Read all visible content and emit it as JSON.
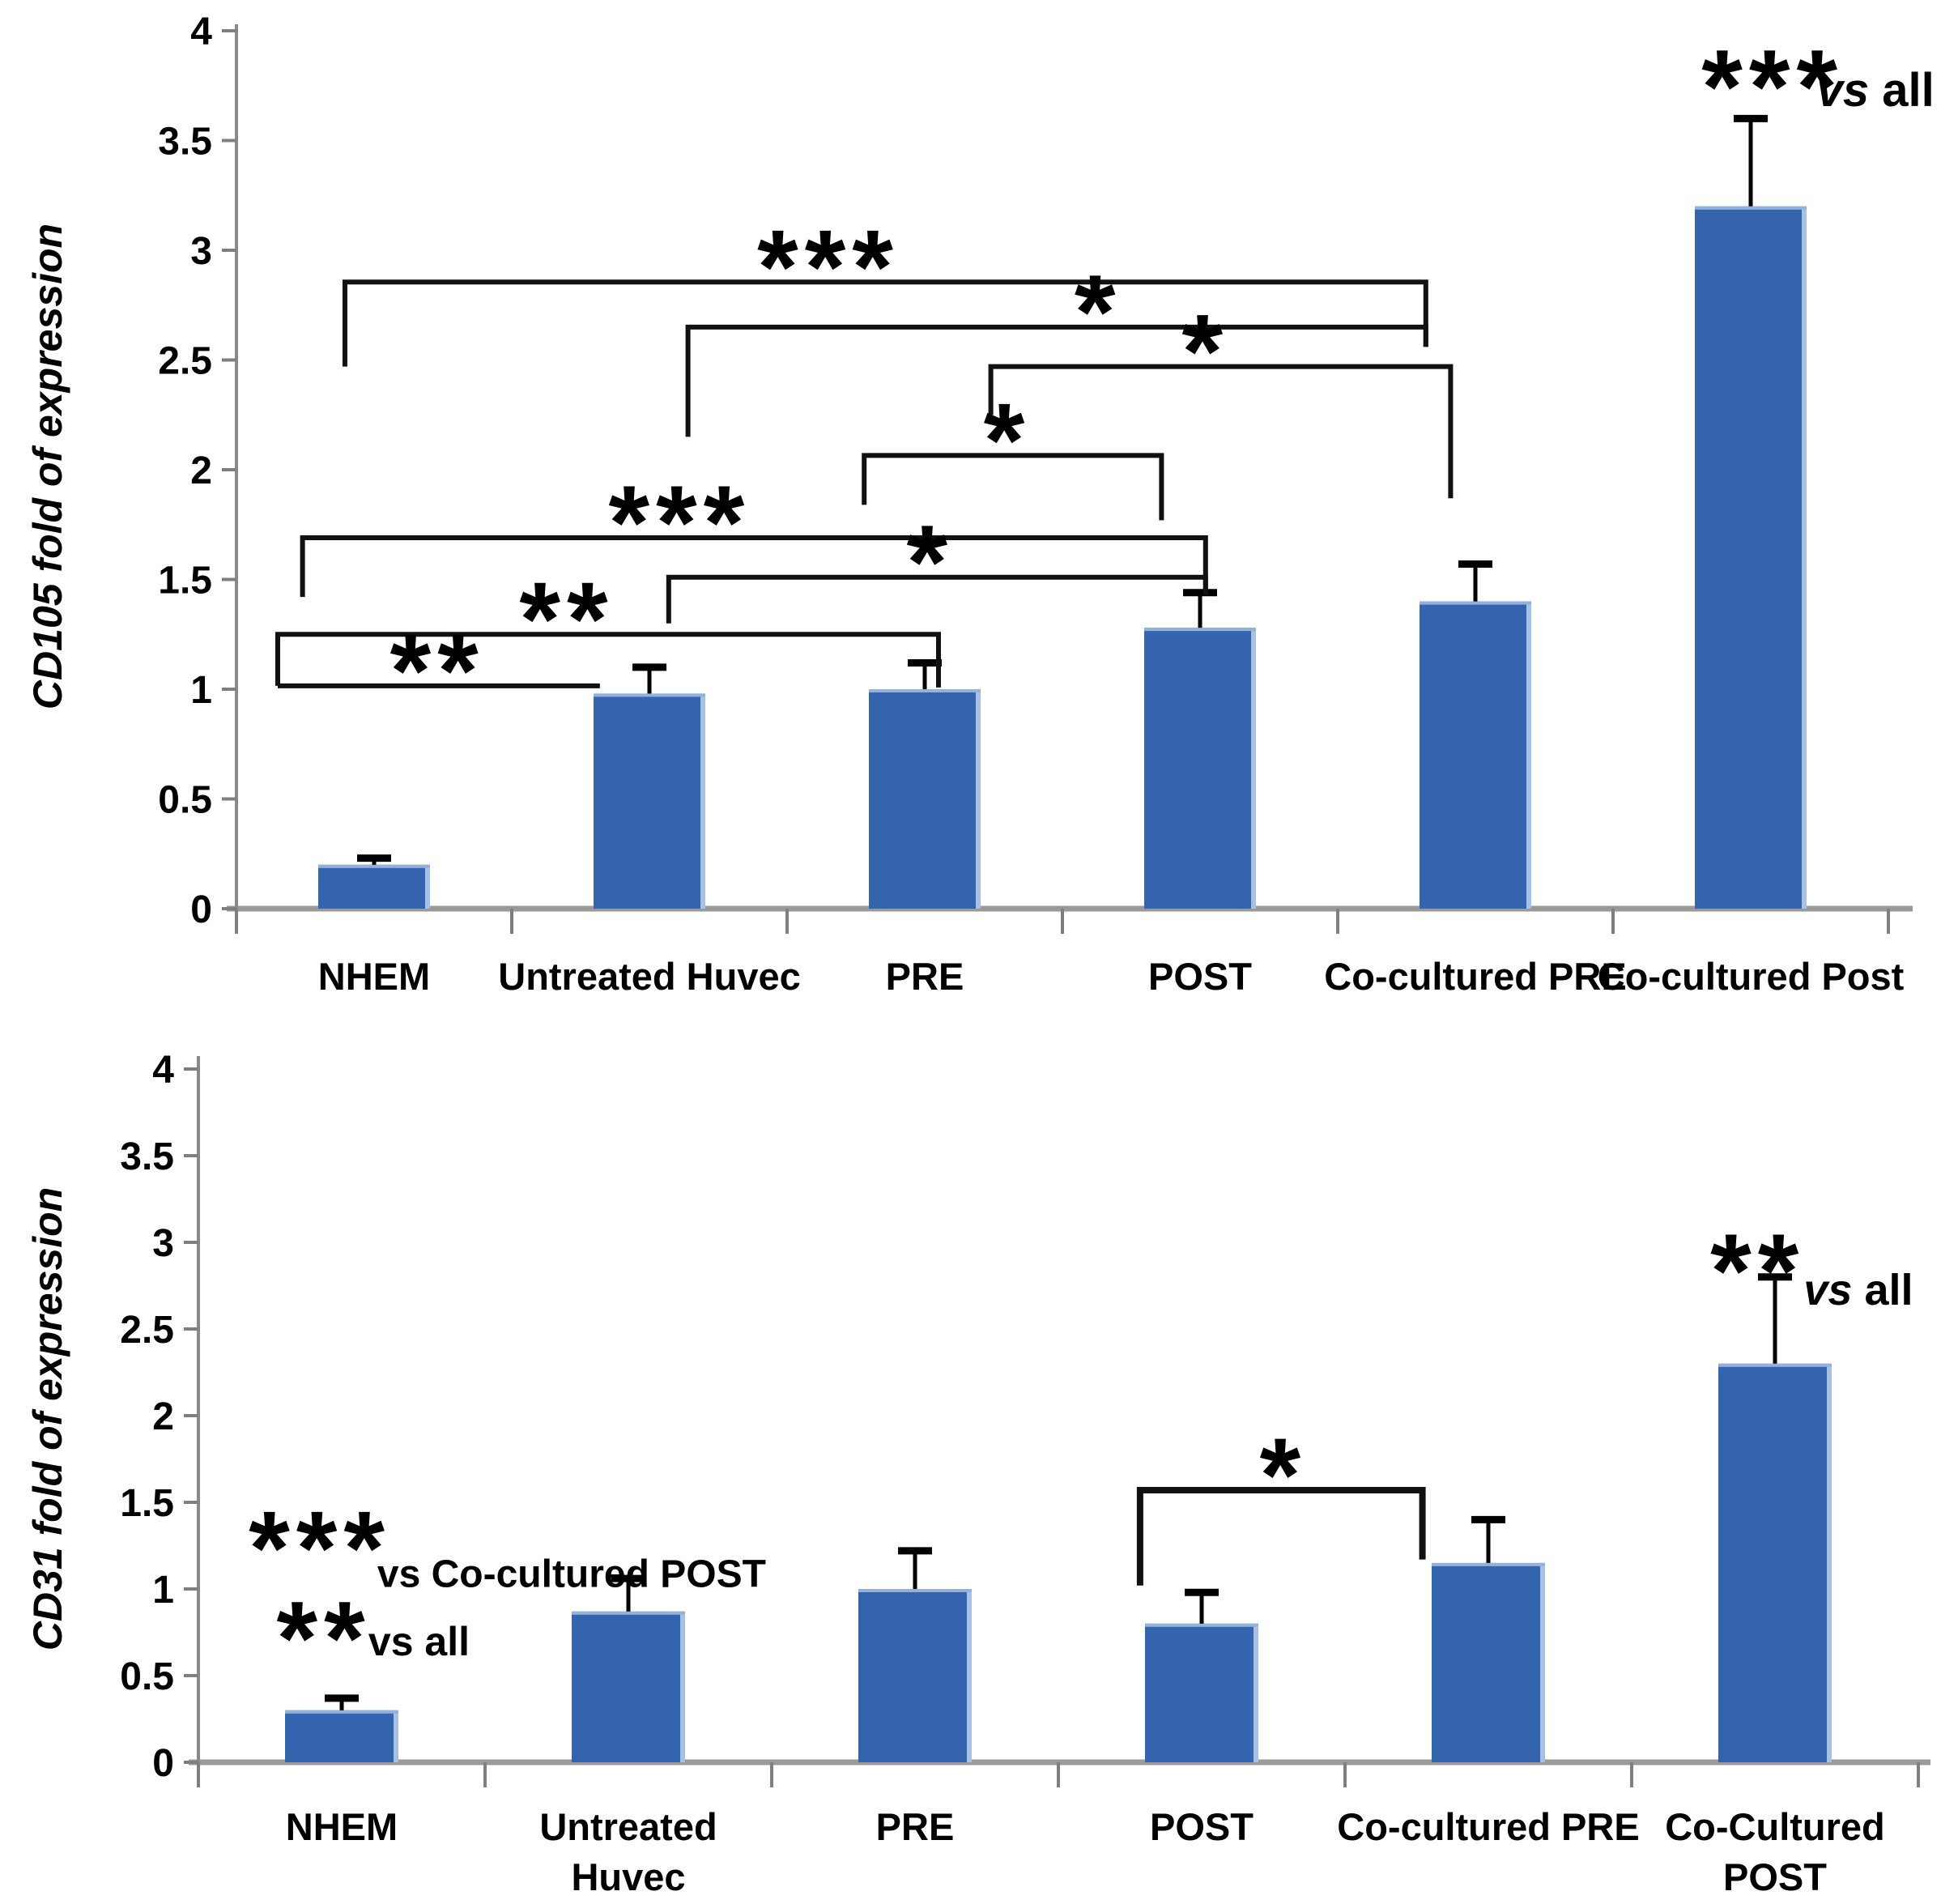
{
  "colors": {
    "bar_fill": "#3464AD",
    "bar_edge_highlight": "#A7C1E5",
    "bar_top_highlight": "#93B1DB",
    "axis_line": "#9A9A9A",
    "y_axis_line": "#8A8A8A",
    "tick_mark": "#7F7F7F",
    "bracket": "#111111",
    "text": "#000000"
  },
  "chart_data": [
    {
      "type": "bar",
      "title": "",
      "ylabel": "CD105 fold of expression",
      "xlabel": "",
      "ylim": [
        0,
        4
      ],
      "ytick_step": 0.5,
      "yticks": [
        "0",
        "0.5",
        "1",
        "1.5",
        "2",
        "2.5",
        "3",
        "3.5",
        "4"
      ],
      "grid": false,
      "legend": null,
      "categories": [
        "NHEM",
        "Untreated Huvec",
        "PRE",
        "POST",
        "Co-cultured PRE",
        "Co-cultured Post"
      ],
      "category_lines": [
        [
          "NHEM"
        ],
        [
          "Untreated Huvec"
        ],
        [
          "PRE"
        ],
        [
          "POST"
        ],
        [
          "Co-cultured PRE"
        ],
        [
          "Co-cultured Post"
        ]
      ],
      "values": [
        0.2,
        0.98,
        1.0,
        1.28,
        1.4,
        3.2
      ],
      "errors_plus": [
        0.03,
        0.12,
        0.12,
        0.16,
        0.17,
        0.4
      ],
      "significance_brackets": [
        {
          "label": "***",
          "x1": -0.106,
          "x2": 3.82,
          "level": 2.855,
          "drop1": 2.47,
          "drop2": 2.56,
          "label_x": 1.65
        },
        {
          "label": "*",
          "x1": 1.14,
          "x2": 3.82,
          "level": 2.65,
          "drop1": 2.15,
          "drop2": 2.56,
          "label_x": 2.63
        },
        {
          "label": "*",
          "x1": 2.24,
          "x2": 3.91,
          "level": 2.47,
          "drop1": 2.25,
          "drop2": 1.87,
          "label_x": 3.02
        },
        {
          "label": "*",
          "x1": 1.78,
          "x2": 2.86,
          "level": 2.065,
          "drop1": 1.84,
          "drop2": 1.77,
          "label_x": 2.3
        },
        {
          "label": "***",
          "x1": -0.26,
          "x2": 3.02,
          "level": 1.69,
          "drop1": 1.42,
          "drop2": 1.43,
          "label_x": 1.11
        },
        {
          "label": "*",
          "x1": 1.07,
          "x2": 3.02,
          "level": 1.51,
          "drop1": 1.3,
          "drop2": 1.43,
          "label_x": 2.02
        },
        {
          "label": "**",
          "x1": -0.35,
          "x2": 2.05,
          "level": 1.25,
          "drop1": 1.015,
          "drop2": 1.008,
          "label_x": 0.7
        },
        {
          "label": "**",
          "x1": -0.35,
          "x2": 0.82,
          "level": 1.015,
          "drop1": null,
          "drop2": null,
          "label_x": 0.23
        }
      ],
      "annotations": [
        {
          "kind": "stars",
          "text": "***",
          "x": 5.08,
          "y": 3.82
        },
        {
          "kind": "text",
          "italic": "vs",
          "rest": " all",
          "x": 5.24,
          "y": 3.73,
          "anchor": "start",
          "size": 58
        }
      ]
    },
    {
      "type": "bar",
      "title": "",
      "ylabel": "CD31 fold of expression",
      "xlabel": "",
      "ylim": [
        0,
        4
      ],
      "ytick_step": 0.5,
      "yticks": [
        "0",
        "0.5",
        "1",
        "1.5",
        "2",
        "2.5",
        "3",
        "3.5",
        "4"
      ],
      "grid": false,
      "legend": null,
      "categories": [
        "NHEM",
        "Untreated Huvec",
        "PRE",
        "POST",
        "Co-cultured PRE",
        "Co-Cultured POST"
      ],
      "category_lines": [
        [
          "NHEM"
        ],
        [
          "Untreated",
          "Huvec"
        ],
        [
          "PRE"
        ],
        [
          "POST"
        ],
        [
          "Co-cultured PRE"
        ],
        [
          "Co-Cultured",
          "POST"
        ]
      ],
      "values": [
        0.3,
        0.87,
        1.0,
        0.8,
        1.15,
        2.3
      ],
      "errors_plus": [
        0.07,
        0.19,
        0.22,
        0.18,
        0.25,
        0.5
      ],
      "significance_brackets": [
        {
          "label": "*",
          "x1": 2.785,
          "x2": 3.77,
          "level": 1.57,
          "drop1": 1.02,
          "drop2": 1.17,
          "label_x": 3.285
        }
      ],
      "annotations": [
        {
          "kind": "stars",
          "text": "***",
          "x": -0.076,
          "y": 1.33
        },
        {
          "kind": "text",
          "italic": null,
          "rest": "vs Co-cultured POST",
          "x": 0.124,
          "y": 1.09,
          "anchor": "start",
          "size": 48
        },
        {
          "kind": "stars",
          "text": "**",
          "x": -0.062,
          "y": 0.81
        },
        {
          "kind": "text",
          "italic": null,
          "rest": "vs all",
          "x": 0.093,
          "y": 0.7,
          "anchor": "start",
          "size": 50
        },
        {
          "kind": "stars",
          "text": "**",
          "x": 4.94,
          "y": 2.93
        },
        {
          "kind": "text",
          "italic": "vs",
          "rest": " all",
          "x": 5.1,
          "y": 2.73,
          "anchor": "start",
          "size": 54
        }
      ]
    }
  ]
}
